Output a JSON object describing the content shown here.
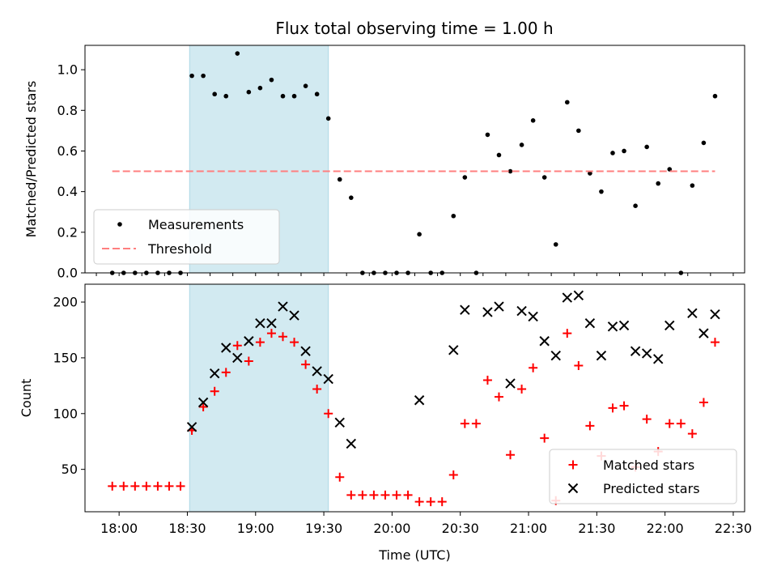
{
  "chart_data": [
    {
      "type": "scatter",
      "title": "Flux total observing time = 1.00 h",
      "xlabel": "",
      "ylabel": "Matched/Predicted stars",
      "xlim": [
        "17:45",
        "22:35"
      ],
      "ylim": [
        0,
        1.12
      ],
      "yticks": [
        0.0,
        0.2,
        0.4,
        0.6,
        0.8,
        1.0
      ],
      "ytick_labels": [
        "0.0",
        "0.2",
        "0.4",
        "0.6",
        "0.8",
        "1.0"
      ],
      "shaded_span": [
        "18:31",
        "19:32"
      ],
      "shade_color": "#add8e6",
      "legend": {
        "placement": "lower-left",
        "entries": [
          "Measurements",
          "Threshold"
        ]
      },
      "series": [
        {
          "name": "Measurements",
          "marker": "dot",
          "color": "#000000",
          "x": [
            "17:57",
            "18:02",
            "18:07",
            "18:12",
            "18:17",
            "18:22",
            "18:27",
            "18:32",
            "18:37",
            "18:42",
            "18:47",
            "18:52",
            "18:57",
            "19:02",
            "19:07",
            "19:12",
            "19:17",
            "19:22",
            "19:27",
            "19:32",
            "19:37",
            "19:42",
            "19:47",
            "19:52",
            "19:57",
            "20:02",
            "20:07",
            "20:12",
            "20:17",
            "20:22",
            "20:27",
            "20:32",
            "20:37",
            "20:42",
            "20:47",
            "20:52",
            "20:57",
            "21:02",
            "21:07",
            "21:12",
            "21:17",
            "21:22",
            "21:27",
            "21:32",
            "21:37",
            "21:42",
            "21:47",
            "21:52",
            "21:57",
            "22:02",
            "22:07",
            "22:12",
            "22:17",
            "22:22"
          ],
          "y": [
            0,
            0,
            0,
            0,
            0,
            0,
            0,
            0.97,
            0.97,
            0.88,
            0.87,
            1.08,
            0.89,
            0.91,
            0.95,
            0.87,
            0.87,
            0.92,
            0.88,
            0.76,
            0.46,
            0.37,
            0,
            0,
            0,
            0,
            0,
            0.19,
            0,
            0,
            0.28,
            0.47,
            0,
            0.68,
            0.58,
            0.5,
            0.63,
            0.75,
            0.47,
            0.14,
            0.84,
            0.7,
            0.49,
            0.4,
            0.59,
            0.6,
            0.33,
            0.62,
            0.44,
            0.51,
            0,
            0.43,
            0.64,
            0.87
          ]
        },
        {
          "name": "Threshold",
          "marker": "dashed-line",
          "color": "#ff7f7f",
          "x": [
            "17:57",
            "22:22"
          ],
          "y": [
            0.5,
            0.5
          ]
        }
      ]
    },
    {
      "type": "scatter",
      "title": "",
      "xlabel": "Time (UTC)",
      "ylabel": "Count",
      "xlim": [
        "17:45",
        "22:35"
      ],
      "ylim": [
        12,
        216
      ],
      "yticks": [
        50,
        100,
        150,
        200
      ],
      "ytick_labels": [
        "50",
        "100",
        "150",
        "200"
      ],
      "xticks": [
        "18:00",
        "18:30",
        "19:00",
        "19:30",
        "20:00",
        "20:30",
        "21:00",
        "21:30",
        "22:00",
        "22:30"
      ],
      "shaded_span": [
        "18:31",
        "19:32"
      ],
      "shade_color": "#add8e6",
      "legend": {
        "placement": "lower-right",
        "entries": [
          "Matched stars",
          "Predicted stars"
        ]
      },
      "series": [
        {
          "name": "Matched stars",
          "marker": "plus",
          "color": "#ff0000",
          "x": [
            "17:57",
            "18:02",
            "18:07",
            "18:12",
            "18:17",
            "18:22",
            "18:27",
            "18:32",
            "18:37",
            "18:42",
            "18:47",
            "18:52",
            "18:57",
            "19:02",
            "19:07",
            "19:12",
            "19:17",
            "19:22",
            "19:27",
            "19:32",
            "19:37",
            "19:42",
            "19:47",
            "19:52",
            "19:57",
            "20:02",
            "20:07",
            "20:12",
            "20:17",
            "20:22",
            "20:27",
            "20:32",
            "20:37",
            "20:42",
            "20:47",
            "20:52",
            "20:57",
            "21:02",
            "21:07",
            "21:12",
            "21:17",
            "21:22",
            "21:27",
            "21:32",
            "21:37",
            "21:42",
            "21:47",
            "21:52",
            "21:57",
            "22:02",
            "22:07",
            "22:12",
            "22:17",
            "22:22"
          ],
          "y": [
            35,
            35,
            35,
            35,
            35,
            35,
            35,
            85,
            106,
            120,
            137,
            161,
            147,
            164,
            172,
            169,
            164,
            144,
            122,
            100,
            43,
            27,
            27,
            27,
            27,
            27,
            27,
            21,
            21,
            21,
            45,
            91,
            91,
            130,
            115,
            63,
            122,
            141,
            78,
            22,
            172,
            143,
            89,
            62,
            105,
            107,
            52,
            95,
            66,
            91,
            91,
            82,
            110,
            164
          ]
        },
        {
          "name": "Predicted stars",
          "marker": "x",
          "color": "#000000",
          "x": [
            "18:32",
            "18:37",
            "18:42",
            "18:47",
            "18:52",
            "18:57",
            "19:02",
            "19:07",
            "19:12",
            "19:17",
            "19:22",
            "19:27",
            "19:32",
            "19:37",
            "19:42",
            "20:12",
            "20:27",
            "20:32",
            "20:42",
            "20:47",
            "20:52",
            "20:57",
            "21:02",
            "21:07",
            "21:12",
            "21:17",
            "21:22",
            "21:27",
            "21:32",
            "21:37",
            "21:42",
            "21:47",
            "21:52",
            "21:57",
            "22:02",
            "22:12",
            "22:17",
            "22:22"
          ],
          "y": [
            88,
            110,
            136,
            159,
            150,
            165,
            181,
            181,
            196,
            188,
            156,
            138,
            131,
            92,
            73,
            112,
            157,
            193,
            191,
            196,
            127,
            192,
            187,
            165,
            152,
            204,
            206,
            181,
            152,
            178,
            179,
            156,
            154,
            149,
            179,
            190,
            172,
            189
          ]
        }
      ]
    }
  ]
}
